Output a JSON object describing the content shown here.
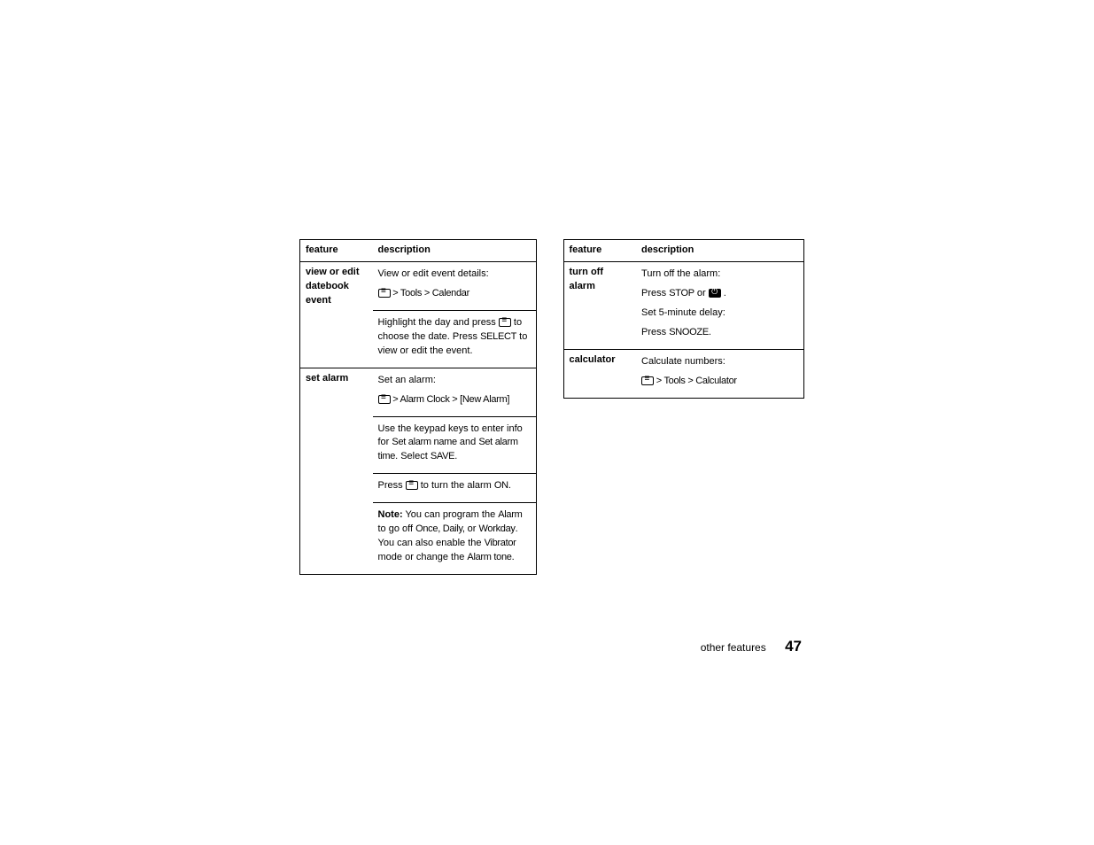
{
  "left_table": {
    "header": {
      "col1": "feature",
      "col2": "description"
    },
    "rows": [
      {
        "feature": "view or edit datebook event",
        "blocks": [
          {
            "text": "View or edit event details:"
          },
          {
            "menu_path": " > Tools > Calendar",
            "has_menu_icon": true
          },
          {
            "text_before": "Highlight the day and press ",
            "text_mid": " to choose the date. Press ",
            "cond1": "SELECT",
            "text_after": " to view or edit the event.",
            "has_menu_icon_inline": true
          }
        ]
      },
      {
        "feature": "set alarm",
        "blocks": [
          {
            "text": "Set an alarm:"
          },
          {
            "menu_path": " > Alarm Clock > [New Alarm]",
            "has_menu_icon": true
          },
          {
            "text_before": "Use the keypad keys to enter info for ",
            "cond1": "Set alarm name",
            "text_mid": " and ",
            "cond2": "Set alarm time",
            "text_mid2": ". Select ",
            "cond3": "SAVE",
            "text_after": "."
          },
          {
            "text_before": "Press ",
            "has_menu_icon_inline": true,
            "text_mid": " to turn the alarm ",
            "cond1": "ON",
            "text_after": "."
          },
          {
            "note": "Note:",
            "text_before": " You can program the ",
            "cond1": "Alarm",
            "text_mid": " to go off ",
            "cond2": "Once, Daily,",
            "text_mid2": " or ",
            "cond3": "Workday",
            "text_mid3": ". You can also enable the ",
            "cond4": "Vibrator",
            "text_mid4": " mode or change the ",
            "cond5": "Alarm tone",
            "text_after": "."
          }
        ]
      }
    ]
  },
  "right_table": {
    "header": {
      "col1": "feature",
      "col2": "description"
    },
    "rows": [
      {
        "feature": "turn off alarm",
        "blocks": [
          {
            "text": "Turn off the alarm:"
          },
          {
            "text_before": "Press ",
            "cond1": "STOP",
            "text_mid": "  or  ",
            "has_end_icon": true,
            "text_after": " ."
          },
          {
            "text": "Set 5-minute delay:"
          },
          {
            "text_before": "Press ",
            "cond1": "SNOOZE.",
            "text_after": ""
          }
        ]
      },
      {
        "feature": "calculator",
        "blocks": [
          {
            "text": "Calculate numbers:"
          },
          {
            "menu_path": " > Tools > Calculator",
            "has_menu_icon": true
          }
        ]
      }
    ]
  },
  "footer": {
    "label": "other features",
    "page": "47"
  }
}
